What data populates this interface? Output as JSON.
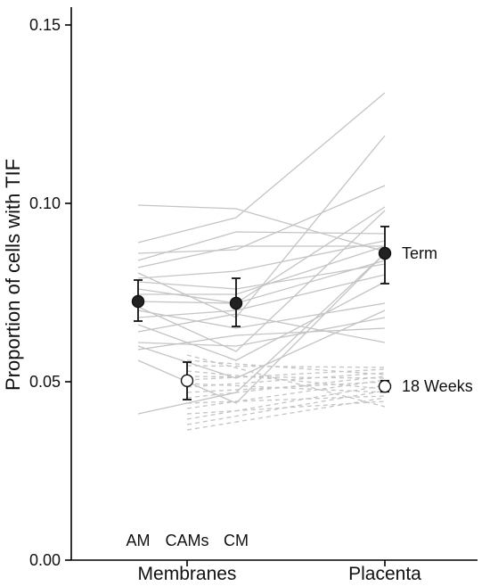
{
  "chart_data": {
    "type": "line",
    "title": "",
    "xlabel": "",
    "ylabel": "Proportion of cells with TIF",
    "ylim": [
      0,
      0.155
    ],
    "y_ticks": [
      0.0,
      0.05,
      0.1,
      0.15
    ],
    "y_tick_labels": [
      "0.00",
      "0.05",
      "0.10",
      "0.15"
    ],
    "categories": [
      "AM",
      "CAMs",
      "CM",
      "Placenta"
    ],
    "group_labels": [
      {
        "text": "Membranes",
        "spans": [
          "AM",
          "CAMs",
          "CM"
        ]
      },
      {
        "text": "Placenta",
        "spans": [
          "Placenta"
        ]
      }
    ],
    "grid": false,
    "colors": {
      "term_individual": "#c4c4c4",
      "week18_individual": "#c4c4c4",
      "mean_marker": "#222222",
      "errorbar": "#111111"
    },
    "series": [
      {
        "name": "Term",
        "points": [
          "AM",
          "CM",
          "Placenta"
        ],
        "mean": [
          0.0725,
          0.072,
          0.086
        ],
        "ci_low": [
          0.067,
          0.0655,
          0.0775
        ],
        "ci_high": [
          0.0785,
          0.079,
          0.0935
        ],
        "marker": "filled",
        "individual_style": "solid",
        "individual_lines": [
          [
            0.0995,
            0.0985,
            0.0865
          ],
          [
            0.089,
            0.096,
            0.131
          ],
          [
            0.086,
            0.087,
            0.105
          ],
          [
            0.084,
            0.092,
            0.0915
          ],
          [
            0.082,
            0.088,
            0.088
          ],
          [
            0.0805,
            0.068,
            0.119
          ],
          [
            0.079,
            0.081,
            0.0895
          ],
          [
            0.078,
            0.076,
            0.083
          ],
          [
            0.076,
            0.072,
            0.099
          ],
          [
            0.0745,
            0.0745,
            0.088
          ],
          [
            0.0725,
            0.072,
            0.084
          ],
          [
            0.071,
            0.0585,
            0.098
          ],
          [
            0.07,
            0.065,
            0.072
          ],
          [
            0.068,
            0.07,
            0.08
          ],
          [
            0.066,
            0.056,
            0.078
          ],
          [
            0.064,
            0.069,
            0.061
          ],
          [
            0.061,
            0.06,
            0.068
          ],
          [
            0.06,
            0.051,
            0.07
          ],
          [
            0.059,
            0.063,
            0.065
          ],
          [
            0.056,
            0.044,
            0.086
          ],
          [
            0.041,
            0.047,
            0.086
          ]
        ]
      },
      {
        "name": "18 Weeks",
        "points": [
          "CAMs",
          "Placenta"
        ],
        "mean": [
          0.0503,
          0.0487
        ],
        "ci_low": [
          0.045,
          0.0472
        ],
        "ci_high": [
          0.0555,
          0.0503
        ],
        "marker": "open",
        "individual_style": "dashed",
        "individual_lines": [
          [
            0.0575,
            0.043
          ],
          [
            0.056,
            0.052
          ],
          [
            0.0545,
            0.054
          ],
          [
            0.053,
            0.048
          ],
          [
            0.0515,
            0.051
          ],
          [
            0.0505,
            0.0535
          ],
          [
            0.0495,
            0.047
          ],
          [
            0.0485,
            0.0525
          ],
          [
            0.047,
            0.05
          ],
          [
            0.0455,
            0.0515
          ],
          [
            0.044,
            0.046
          ],
          [
            0.0425,
            0.0505
          ],
          [
            0.041,
            0.0445
          ],
          [
            0.0395,
            0.049
          ],
          [
            0.038,
            0.0475
          ],
          [
            0.0365,
            0.0455
          ]
        ]
      }
    ],
    "annotations": [
      {
        "text": "Term",
        "series": "Term"
      },
      {
        "text": "18 Weeks",
        "series": "18 Weeks"
      }
    ]
  }
}
